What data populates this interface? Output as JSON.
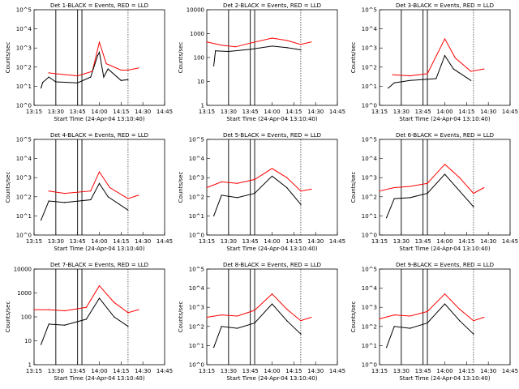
{
  "chart_data": [
    {
      "type": "line",
      "title": "Det 1-BLACK = Events, RED = LLD",
      "ylabel": "Counts/sec",
      "xlabel": "Start Time (24-Apr-04 13:10:40)",
      "x_tick_labels": [
        "13:15",
        "13:30",
        "13:45",
        "14:00",
        "14:15",
        "14:30",
        "14:45"
      ],
      "y_tick_labels": [
        "10^0",
        "10^1",
        "10^2",
        "10^3",
        "10^4",
        "10^5"
      ],
      "yscale": "log",
      "ylim": [
        1,
        100000
      ],
      "series": [
        {
          "name": "BLACK = Events",
          "color": "#000000"
        },
        {
          "name": "RED = LLD",
          "color": "#ff0000"
        }
      ],
      "red": [
        [
          13.42,
          50
        ],
        [
          13.5,
          45
        ],
        [
          13.75,
          35
        ],
        [
          13.92,
          60
        ],
        [
          14.0,
          2000
        ],
        [
          14.08,
          150
        ],
        [
          14.25,
          70
        ],
        [
          14.33,
          70
        ],
        [
          14.45,
          90
        ]
      ],
      "black": [
        [
          13.33,
          8
        ],
        [
          13.35,
          16
        ],
        [
          13.42,
          30
        ],
        [
          13.5,
          17
        ],
        [
          13.75,
          15
        ],
        [
          13.9,
          30
        ],
        [
          13.98,
          400
        ],
        [
          14.0,
          600
        ],
        [
          14.05,
          30
        ],
        [
          14.1,
          80
        ],
        [
          14.25,
          20
        ],
        [
          14.33,
          22
        ]
      ]
    },
    {
      "type": "line",
      "title": "Det 2-BLACK = Events, RED = LLD",
      "ylabel": "Counts/sec",
      "xlabel": "Start Time (24-Apr-04 13:10:40)",
      "x_tick_labels": [
        "13:15",
        "13:30",
        "13:45",
        "14:00",
        "14:15",
        "14:30",
        "14:45"
      ],
      "y_tick_labels": [
        "1",
        "10",
        "100",
        "1000",
        "10000"
      ],
      "yscale": "log",
      "ylim": [
        1,
        10000
      ],
      "series": [
        {
          "name": "BLACK = Events",
          "color": "#000000"
        },
        {
          "name": "RED = LLD",
          "color": "#ff0000"
        }
      ],
      "red": [
        [
          13.25,
          450
        ],
        [
          13.42,
          330
        ],
        [
          13.58,
          280
        ],
        [
          13.75,
          400
        ],
        [
          14.0,
          650
        ],
        [
          14.17,
          520
        ],
        [
          14.33,
          350
        ],
        [
          14.45,
          450
        ]
      ],
      "black": [
        [
          13.33,
          45
        ],
        [
          13.35,
          190
        ],
        [
          13.5,
          180
        ],
        [
          13.75,
          220
        ],
        [
          14.0,
          300
        ],
        [
          14.17,
          260
        ],
        [
          14.33,
          210
        ]
      ]
    },
    {
      "type": "line",
      "title": "Det 3-BLACK = Events, RED = LLD",
      "ylabel": "Counts/sec",
      "xlabel": "Start Time (24-Apr-04 13:10:40)",
      "x_tick_labels": [
        "13:15",
        "13:30",
        "13:45",
        "14:00",
        "14:15",
        "14:30",
        "14:45"
      ],
      "y_tick_labels": [
        "10^0",
        "10^1",
        "10^2",
        "10^3",
        "10^4",
        "10^5"
      ],
      "yscale": "log",
      "ylim": [
        1,
        100000
      ],
      "series": [
        {
          "name": "BLACK = Events",
          "color": "#000000"
        },
        {
          "name": "RED = LLD",
          "color": "#ff0000"
        }
      ],
      "red": [
        [
          13.4,
          40
        ],
        [
          13.6,
          35
        ],
        [
          13.8,
          45
        ],
        [
          14.0,
          3000
        ],
        [
          14.12,
          300
        ],
        [
          14.3,
          60
        ],
        [
          14.45,
          80
        ]
      ],
      "black": [
        [
          13.35,
          8
        ],
        [
          13.42,
          15
        ],
        [
          13.6,
          20
        ],
        [
          13.9,
          25
        ],
        [
          14.0,
          400
        ],
        [
          14.1,
          80
        ],
        [
          14.3,
          20
        ]
      ]
    },
    {
      "type": "line",
      "title": "Det 4-BLACK = Events, RED = LLD",
      "ylabel": "Counts/sec",
      "xlabel": "Start Time (24-Apr-04 13:10:40)",
      "x_tick_labels": [
        "13:15",
        "13:30",
        "13:45",
        "14:00",
        "14:15",
        "14:30",
        "14:45"
      ],
      "y_tick_labels": [
        "10^0",
        "10^1",
        "10^2",
        "10^3",
        "10^4",
        "10^5"
      ],
      "yscale": "log",
      "ylim": [
        1,
        100000
      ],
      "series": [
        {
          "name": "BLACK = Events",
          "color": "#000000"
        },
        {
          "name": "RED = LLD",
          "color": "#ff0000"
        }
      ],
      "red": [
        [
          13.42,
          200
        ],
        [
          13.6,
          150
        ],
        [
          13.9,
          200
        ],
        [
          14.0,
          2000
        ],
        [
          14.12,
          300
        ],
        [
          14.33,
          80
        ],
        [
          14.45,
          120
        ]
      ],
      "black": [
        [
          13.33,
          6
        ],
        [
          13.42,
          60
        ],
        [
          13.6,
          50
        ],
        [
          13.9,
          70
        ],
        [
          14.0,
          500
        ],
        [
          14.1,
          100
        ],
        [
          14.33,
          20
        ]
      ]
    },
    {
      "type": "line",
      "title": "Det 5-BLACK = Events, RED = LLD",
      "ylabel": "Counts/sec",
      "xlabel": "Start Time (24-Apr-04 13:10:40)",
      "x_tick_labels": [
        "13:15",
        "13:30",
        "13:45",
        "14:00",
        "14:15",
        "14:30",
        "14:45"
      ],
      "y_tick_labels": [
        "10^0",
        "10^1",
        "10^2",
        "10^3",
        "10^4",
        "10^5"
      ],
      "yscale": "log",
      "ylim": [
        1,
        100000
      ],
      "series": [
        {
          "name": "BLACK = Events",
          "color": "#000000"
        },
        {
          "name": "RED = LLD",
          "color": "#ff0000"
        }
      ],
      "red": [
        [
          13.25,
          300
        ],
        [
          13.42,
          600
        ],
        [
          13.6,
          500
        ],
        [
          13.8,
          800
        ],
        [
          14.0,
          3000
        ],
        [
          14.17,
          1000
        ],
        [
          14.33,
          200
        ],
        [
          14.45,
          250
        ]
      ],
      "black": [
        [
          13.33,
          10
        ],
        [
          13.42,
          120
        ],
        [
          13.6,
          90
        ],
        [
          13.8,
          150
        ],
        [
          14.0,
          1200
        ],
        [
          14.17,
          300
        ],
        [
          14.33,
          40
        ]
      ]
    },
    {
      "type": "line",
      "title": "Det 6-BLACK = Events, RED = LLD",
      "ylabel": "Counts/sec",
      "xlabel": "Start Time (24-Apr-04 13:10:40)",
      "x_tick_labels": [
        "13:15",
        "13:30",
        "13:45",
        "14:00",
        "14:15",
        "14:30",
        "14:45"
      ],
      "y_tick_labels": [
        "10^0",
        "10^1",
        "10^2",
        "10^3",
        "10^4",
        "10^5"
      ],
      "yscale": "log",
      "ylim": [
        1,
        100000
      ],
      "series": [
        {
          "name": "BLACK = Events",
          "color": "#000000"
        },
        {
          "name": "RED = LLD",
          "color": "#ff0000"
        }
      ],
      "red": [
        [
          13.25,
          200
        ],
        [
          13.42,
          300
        ],
        [
          13.6,
          350
        ],
        [
          13.8,
          500
        ],
        [
          14.0,
          5000
        ],
        [
          14.17,
          1000
        ],
        [
          14.33,
          150
        ],
        [
          14.45,
          300
        ]
      ],
      "black": [
        [
          13.33,
          8
        ],
        [
          13.42,
          80
        ],
        [
          13.6,
          90
        ],
        [
          13.8,
          150
        ],
        [
          14.0,
          1500
        ],
        [
          14.17,
          200
        ],
        [
          14.33,
          30
        ]
      ]
    },
    {
      "type": "line",
      "title": "Det 7-BLACK = Events, RED = LLD",
      "ylabel": "Counts/sec",
      "xlabel": "Start Time (24-Apr-04 13:10:40)",
      "x_tick_labels": [
        "13:15",
        "13:30",
        "13:45",
        "14:00",
        "14:15",
        "14:30",
        "14:45"
      ],
      "y_tick_labels": [
        "1",
        "10",
        "100",
        "1000",
        "10000"
      ],
      "yscale": "log",
      "ylim": [
        1,
        10000
      ],
      "series": [
        {
          "name": "BLACK = Events",
          "color": "#000000"
        },
        {
          "name": "RED = LLD",
          "color": "#ff0000"
        }
      ],
      "red": [
        [
          13.25,
          200
        ],
        [
          13.42,
          200
        ],
        [
          13.6,
          180
        ],
        [
          13.85,
          250
        ],
        [
          14.0,
          2000
        ],
        [
          14.17,
          400
        ],
        [
          14.33,
          150
        ],
        [
          14.45,
          200
        ]
      ],
      "black": [
        [
          13.33,
          7
        ],
        [
          13.42,
          50
        ],
        [
          13.6,
          45
        ],
        [
          13.85,
          80
        ],
        [
          14.0,
          600
        ],
        [
          14.17,
          100
        ],
        [
          14.33,
          40
        ]
      ]
    },
    {
      "type": "line",
      "title": "Det 8-BLACK = Events, RED = LLD",
      "ylabel": "Counts/sec",
      "xlabel": "Start Time (24-Apr-04 13:10:40)",
      "x_tick_labels": [
        "13:15",
        "13:30",
        "13:45",
        "14:00",
        "14:15",
        "14:30",
        "14:45"
      ],
      "y_tick_labels": [
        "10^0",
        "10^1",
        "10^2",
        "10^3",
        "10^4",
        "10^5"
      ],
      "yscale": "log",
      "ylim": [
        1,
        100000
      ],
      "series": [
        {
          "name": "BLACK = Events",
          "color": "#000000"
        },
        {
          "name": "RED = LLD",
          "color": "#ff0000"
        }
      ],
      "red": [
        [
          13.25,
          300
        ],
        [
          13.42,
          400
        ],
        [
          13.6,
          350
        ],
        [
          13.8,
          700
        ],
        [
          14.0,
          5000
        ],
        [
          14.17,
          800
        ],
        [
          14.33,
          200
        ],
        [
          14.45,
          300
        ]
      ],
      "black": [
        [
          13.33,
          8
        ],
        [
          13.42,
          100
        ],
        [
          13.6,
          80
        ],
        [
          13.8,
          150
        ],
        [
          14.0,
          1500
        ],
        [
          14.17,
          200
        ],
        [
          14.33,
          40
        ]
      ]
    },
    {
      "type": "line",
      "title": "Det 9-BLACK = Events, RED = LLD",
      "ylabel": "Counts/sec",
      "xlabel": "Start Time (24-Apr-04 13:10:40)",
      "x_tick_labels": [
        "13:15",
        "13:30",
        "13:45",
        "14:00",
        "14:15",
        "14:30",
        "14:45"
      ],
      "y_tick_labels": [
        "10^0",
        "10^1",
        "10^2",
        "10^3",
        "10^4",
        "10^5"
      ],
      "yscale": "log",
      "ylim": [
        1,
        100000
      ],
      "series": [
        {
          "name": "BLACK = Events",
          "color": "#000000"
        },
        {
          "name": "RED = LLD",
          "color": "#ff0000"
        }
      ],
      "red": [
        [
          13.25,
          250
        ],
        [
          13.42,
          400
        ],
        [
          13.6,
          350
        ],
        [
          13.8,
          600
        ],
        [
          14.0,
          5000
        ],
        [
          14.17,
          800
        ],
        [
          14.33,
          200
        ],
        [
          14.45,
          300
        ]
      ],
      "black": [
        [
          13.33,
          8
        ],
        [
          13.42,
          100
        ],
        [
          13.6,
          80
        ],
        [
          13.8,
          150
        ],
        [
          14.0,
          1500
        ],
        [
          14.17,
          200
        ],
        [
          14.33,
          40
        ]
      ]
    }
  ]
}
